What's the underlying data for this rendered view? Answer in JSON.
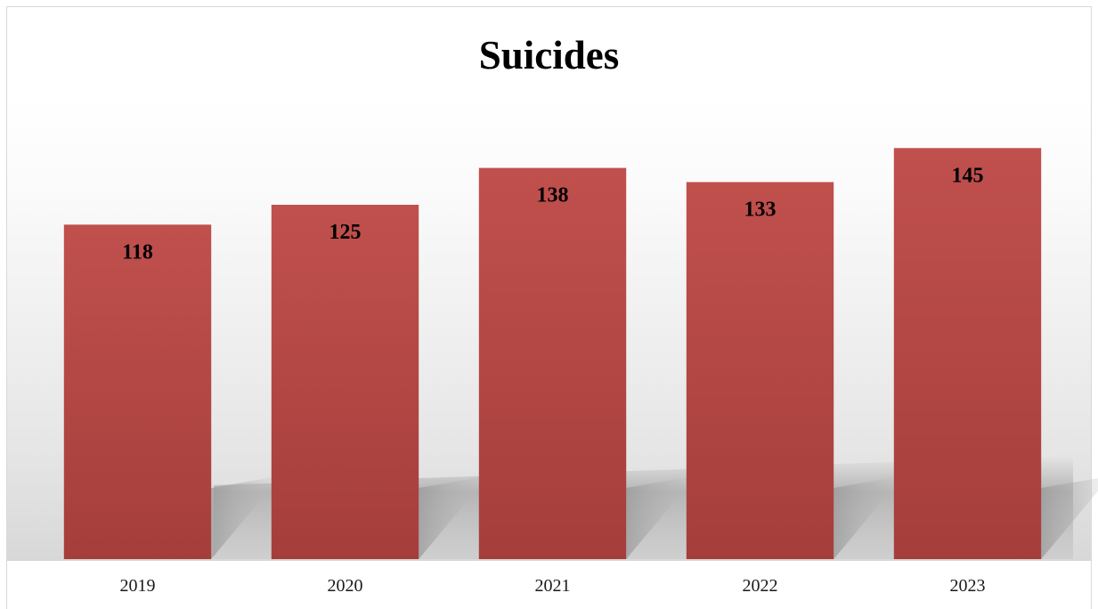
{
  "chart_data": {
    "type": "bar",
    "title": "Suicides",
    "categories": [
      "2019",
      "2020",
      "2021",
      "2022",
      "2023"
    ],
    "values": [
      118,
      125,
      138,
      133,
      145
    ],
    "xlabel": "",
    "ylabel": "",
    "ylim": [
      0,
      152
    ],
    "grid": false,
    "legend": "none",
    "data_labels": "inside-top",
    "bar_color": "#be4b48",
    "background": "gradient-white-to-light-gray"
  }
}
